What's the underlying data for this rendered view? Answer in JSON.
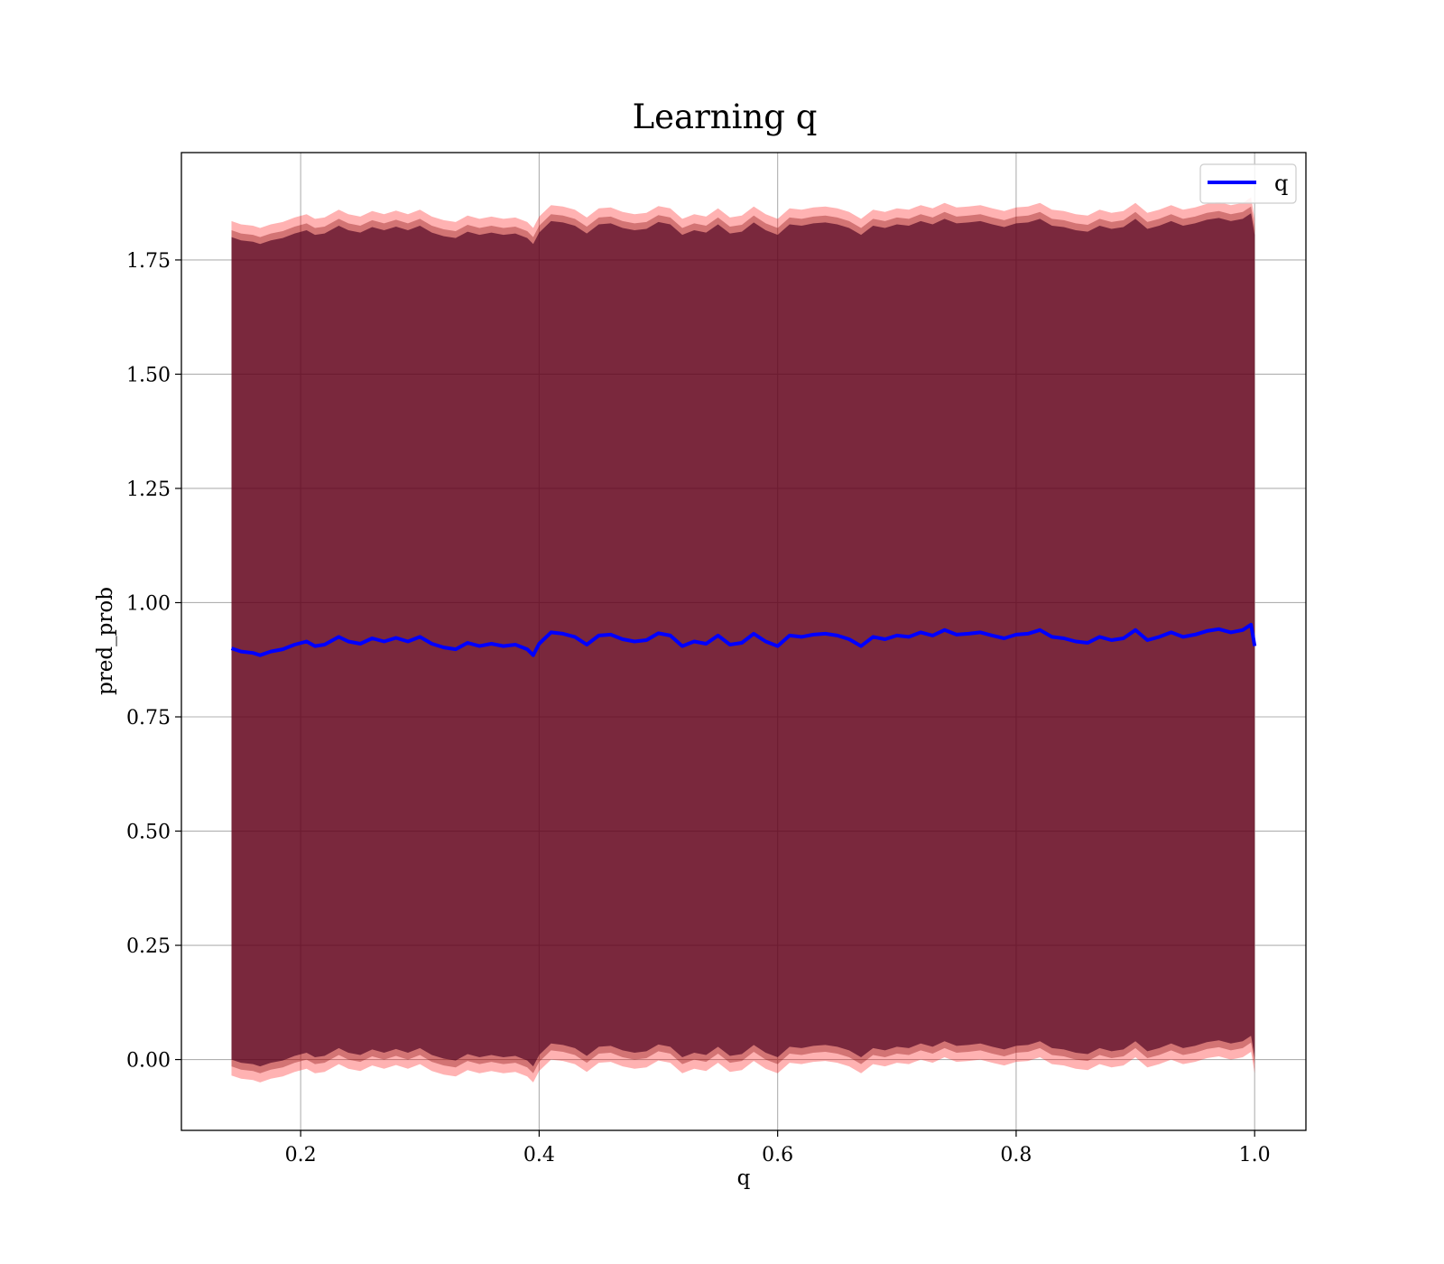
{
  "chart_data": {
    "type": "line",
    "title": "Learning q",
    "xlabel": "q",
    "ylabel": "pred_prob",
    "xlim": [
      0.1,
      1.043
    ],
    "ylim": [
      -0.155,
      1.985
    ],
    "xticks": [
      0.2,
      0.4,
      0.6,
      0.8,
      1.0
    ],
    "xtick_labels": [
      "0.2",
      "0.4",
      "0.6",
      "0.8",
      "1.0"
    ],
    "yticks": [
      0.0,
      0.25,
      0.5,
      0.75,
      1.0,
      1.25,
      1.5,
      1.75
    ],
    "ytick_labels": [
      "0.00",
      "0.25",
      "0.50",
      "0.75",
      "1.00",
      "1.25",
      "1.50",
      "1.75"
    ],
    "grid": true,
    "legend_position": "top-right",
    "series": [
      {
        "name": "q",
        "color": "#0000ff",
        "x": [
          0.142,
          0.15,
          0.16,
          0.166,
          0.175,
          0.185,
          0.195,
          0.205,
          0.212,
          0.22,
          0.232,
          0.24,
          0.25,
          0.26,
          0.27,
          0.28,
          0.29,
          0.3,
          0.31,
          0.32,
          0.33,
          0.34,
          0.35,
          0.36,
          0.37,
          0.38,
          0.39,
          0.395,
          0.4,
          0.41,
          0.42,
          0.43,
          0.44,
          0.45,
          0.46,
          0.47,
          0.48,
          0.49,
          0.5,
          0.51,
          0.52,
          0.53,
          0.54,
          0.55,
          0.56,
          0.57,
          0.58,
          0.59,
          0.6,
          0.61,
          0.62,
          0.63,
          0.64,
          0.65,
          0.66,
          0.67,
          0.68,
          0.69,
          0.7,
          0.71,
          0.72,
          0.73,
          0.74,
          0.75,
          0.76,
          0.77,
          0.78,
          0.79,
          0.8,
          0.81,
          0.82,
          0.83,
          0.84,
          0.85,
          0.86,
          0.87,
          0.88,
          0.89,
          0.9,
          0.91,
          0.92,
          0.93,
          0.94,
          0.95,
          0.96,
          0.97,
          0.98,
          0.99,
          0.997,
          1.0
        ],
        "y": [
          0.9,
          0.893,
          0.89,
          0.885,
          0.893,
          0.898,
          0.908,
          0.915,
          0.905,
          0.908,
          0.925,
          0.915,
          0.91,
          0.922,
          0.915,
          0.923,
          0.915,
          0.925,
          0.91,
          0.902,
          0.898,
          0.912,
          0.905,
          0.91,
          0.905,
          0.908,
          0.898,
          0.885,
          0.91,
          0.935,
          0.932,
          0.925,
          0.908,
          0.928,
          0.93,
          0.92,
          0.915,
          0.918,
          0.933,
          0.928,
          0.905,
          0.915,
          0.91,
          0.928,
          0.908,
          0.912,
          0.932,
          0.915,
          0.905,
          0.928,
          0.925,
          0.93,
          0.932,
          0.928,
          0.92,
          0.905,
          0.925,
          0.92,
          0.928,
          0.925,
          0.935,
          0.928,
          0.94,
          0.93,
          0.932,
          0.935,
          0.928,
          0.922,
          0.93,
          0.932,
          0.94,
          0.925,
          0.922,
          0.915,
          0.912,
          0.925,
          0.918,
          0.922,
          0.94,
          0.918,
          0.925,
          0.935,
          0.925,
          0.93,
          0.938,
          0.942,
          0.935,
          0.94,
          0.952,
          0.905
        ]
      }
    ],
    "bands": [
      {
        "color": "#ff0000",
        "opacity": 0.3,
        "offset_lower": -0.935,
        "offset_upper": 0.935
      },
      {
        "color": "#800000",
        "opacity": 0.35,
        "offset_lower": -0.915,
        "offset_upper": 0.915
      },
      {
        "color": "#4a0020",
        "opacity": 0.65,
        "offset_lower": -0.9,
        "offset_upper": 0.9
      }
    ]
  }
}
